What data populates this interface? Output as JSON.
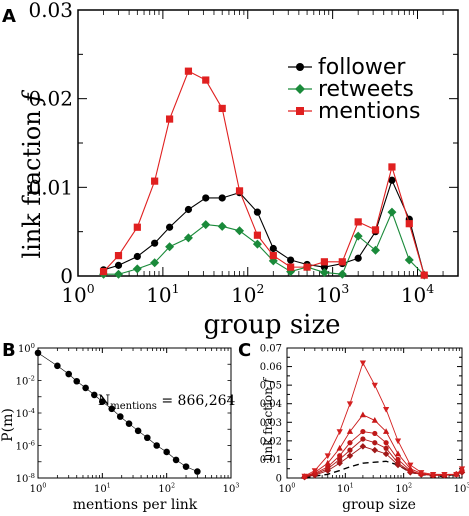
{
  "chart_data": [
    {
      "panel_label": "A",
      "type": "line",
      "xlabel": "group size",
      "ylabel": "link fraction",
      "ylabel_symbol": "f",
      "xscale": "log",
      "xlim": [
        1,
        30000
      ],
      "ylim": [
        0,
        0.03
      ],
      "xticks": [
        {
          "value": 1,
          "base": "10",
          "exp": "0"
        },
        {
          "value": 10,
          "base": "10",
          "exp": "1"
        },
        {
          "value": 100,
          "base": "10",
          "exp": "2"
        },
        {
          "value": 1000,
          "base": "10",
          "exp": "3"
        },
        {
          "value": 10000,
          "base": "10",
          "exp": "4"
        }
      ],
      "yticks": [
        {
          "value": 0,
          "label": "0"
        },
        {
          "value": 0.01,
          "label": "0.01"
        },
        {
          "value": 0.02,
          "label": "0.02"
        },
        {
          "value": 0.03,
          "label": "0.03"
        }
      ],
      "legend_position": "top-right",
      "series": [
        {
          "name": "follower",
          "color": "#000000",
          "marker": "circle",
          "x": [
            2,
            3,
            5,
            8,
            12,
            20,
            32,
            50,
            80,
            130,
            200,
            320,
            500,
            800,
            1300,
            2000,
            3200,
            5000,
            8000,
            12000
          ],
          "y": [
            0.0007,
            0.0012,
            0.0022,
            0.0037,
            0.0055,
            0.0075,
            0.0088,
            0.0088,
            0.0094,
            0.0072,
            0.0031,
            0.0018,
            0.0013,
            0.001,
            0.0014,
            0.002,
            0.005,
            0.0108,
            0.0064,
            0.0001
          ]
        },
        {
          "name": "retweets",
          "color": "#1a8a3a",
          "marker": "diamond",
          "x": [
            2,
            3,
            5,
            8,
            12,
            20,
            32,
            50,
            80,
            130,
            200,
            320,
            500,
            800,
            1300,
            2000,
            3200,
            5000,
            8000,
            12000
          ],
          "y": [
            0.0002,
            0.0002,
            0.0008,
            0.0015,
            0.0033,
            0.0043,
            0.0058,
            0.0056,
            0.0051,
            0.0036,
            0.0017,
            0.0005,
            0.001,
            0.0004,
            0.0002,
            0.0045,
            0.0029,
            0.0072,
            0.0018,
            0.0001
          ]
        },
        {
          "name": "mentions",
          "color": "#e02020",
          "marker": "square",
          "x": [
            2,
            3,
            5,
            8,
            12,
            20,
            32,
            50,
            80,
            130,
            200,
            320,
            500,
            800,
            1300,
            2000,
            3200,
            5000,
            8000,
            12000
          ],
          "y": [
            0.0005,
            0.0023,
            0.0055,
            0.0107,
            0.0177,
            0.0231,
            0.0221,
            0.0189,
            0.0096,
            0.0046,
            0.0023,
            0.001,
            0.001,
            0.0016,
            0.0016,
            0.0061,
            0.0052,
            0.0123,
            0.0059,
            0.0001
          ]
        }
      ]
    },
    {
      "panel_label": "B",
      "type": "line",
      "xlabel": "mentions per link",
      "ylabel": "P(m)",
      "xscale": "log",
      "yscale": "log",
      "xlim": [
        1,
        1000
      ],
      "ylim": [
        1e-08,
        1
      ],
      "xticks": [
        {
          "value": 1,
          "base": "10",
          "exp": "0"
        },
        {
          "value": 10,
          "base": "10",
          "exp": "1"
        },
        {
          "value": 100,
          "base": "10",
          "exp": "2"
        },
        {
          "value": 1000,
          "base": "10",
          "exp": "3"
        }
      ],
      "yticks": [
        {
          "value": 1e-08,
          "base": "10",
          "exp": "-8"
        },
        {
          "value": 1e-06,
          "base": "10",
          "exp": "-6"
        },
        {
          "value": 0.0001,
          "base": "10",
          "exp": "-4"
        },
        {
          "value": 0.01,
          "base": "10",
          "exp": "-2"
        },
        {
          "value": 1,
          "base": "10",
          "exp": "0"
        }
      ],
      "annotation": {
        "main": "N",
        "sub": "mentions",
        "rest": " = 866,264"
      },
      "series": [
        {
          "name": "",
          "color": "#000000",
          "marker": "circle",
          "x": [
            1,
            2,
            3,
            4,
            5.5,
            7.5,
            10,
            14,
            19,
            26,
            36,
            50,
            70,
            100,
            140,
            200,
            300
          ],
          "y": [
            0.5,
            0.08,
            0.025,
            0.009,
            0.0035,
            0.0013,
            0.0005,
            0.00018,
            6e-05,
            2.2e-05,
            8e-06,
            3e-06,
            1e-06,
            4e-07,
            1.3e-07,
            5e-08,
            2.5e-08
          ]
        }
      ]
    },
    {
      "panel_label": "C",
      "type": "line",
      "xlabel": "group size",
      "ylabel": "link fraction",
      "ylabel_symbol": "f",
      "xscale": "log",
      "xlim": [
        1,
        1000
      ],
      "ylim": [
        0,
        0.07
      ],
      "xticks": [
        {
          "value": 1,
          "base": "10",
          "exp": "0"
        },
        {
          "value": 10,
          "base": "10",
          "exp": "1"
        },
        {
          "value": 100,
          "base": "10",
          "exp": "2"
        },
        {
          "value": 1000,
          "base": "10",
          "exp": "3"
        }
      ],
      "yticks": [
        {
          "value": 0,
          "label": "0"
        },
        {
          "value": 0.01,
          "label": "0.01"
        },
        {
          "value": 0.02,
          "label": "0.02"
        },
        {
          "value": 0.03,
          "label": "0.03"
        },
        {
          "value": 0.04,
          "label": "0.04"
        },
        {
          "value": 0.05,
          "label": "0.05"
        },
        {
          "value": 0.06,
          "label": "0.06"
        },
        {
          "value": 0.07,
          "label": "0.07"
        }
      ],
      "series": [
        {
          "name": "",
          "color": "#000000",
          "marker": "none",
          "dashed": true,
          "x": [
            2,
            3,
            5,
            8,
            12,
            20,
            32,
            50,
            80,
            130,
            200,
            320,
            500,
            800
          ],
          "y": [
            0.0003,
            0.001,
            0.002,
            0.004,
            0.006,
            0.008,
            0.0085,
            0.009,
            0.007,
            0.003,
            0.002,
            0.001,
            0.001,
            0.002
          ]
        },
        {
          "name": "",
          "color": "#a01818",
          "marker": "diamond",
          "x": [
            2,
            3,
            5,
            8,
            12,
            20,
            32,
            50,
            80,
            130,
            200,
            320,
            500,
            800,
            1000
          ],
          "y": [
            0.0005,
            0.0015,
            0.004,
            0.008,
            0.012,
            0.017,
            0.015,
            0.013,
            0.007,
            0.003,
            0.002,
            0.0015,
            0.0015,
            0.002,
            0.003
          ]
        },
        {
          "name": "",
          "color": "#b01818",
          "marker": "circle",
          "x": [
            2,
            3,
            5,
            8,
            12,
            20,
            32,
            50,
            80,
            130,
            200,
            320,
            500,
            800,
            1000
          ],
          "y": [
            0.0006,
            0.002,
            0.005,
            0.01,
            0.015,
            0.021,
            0.019,
            0.016,
            0.008,
            0.0035,
            0.002,
            0.0015,
            0.0015,
            0.002,
            0.0035
          ]
        },
        {
          "name": "",
          "color": "#c01818",
          "marker": "circle",
          "x": [
            2,
            3,
            5,
            8,
            12,
            20,
            32,
            50,
            80,
            130,
            200,
            320,
            500,
            800,
            1000
          ],
          "y": [
            0.0007,
            0.0025,
            0.006,
            0.012,
            0.019,
            0.025,
            0.024,
            0.019,
            0.01,
            0.004,
            0.002,
            0.0015,
            0.0015,
            0.002,
            0.004
          ]
        },
        {
          "name": "",
          "color": "#c81818",
          "marker": "triangle-up",
          "x": [
            2,
            3,
            5,
            8,
            12,
            20,
            32,
            50,
            80,
            130,
            200,
            320,
            500,
            800,
            1000
          ],
          "y": [
            0.0008,
            0.003,
            0.008,
            0.016,
            0.025,
            0.034,
            0.031,
            0.025,
            0.013,
            0.005,
            0.0025,
            0.0015,
            0.0015,
            0.002,
            0.004
          ]
        },
        {
          "name": "",
          "color": "#d42020",
          "marker": "triangle-down",
          "x": [
            2,
            3,
            5,
            8,
            12,
            20,
            32,
            50,
            80,
            130,
            200,
            320,
            500,
            800,
            1000
          ],
          "y": [
            0.001,
            0.004,
            0.012,
            0.025,
            0.04,
            0.062,
            0.05,
            0.037,
            0.02,
            0.007,
            0.003,
            0.002,
            0.002,
            0.002,
            0.005
          ]
        }
      ]
    }
  ]
}
